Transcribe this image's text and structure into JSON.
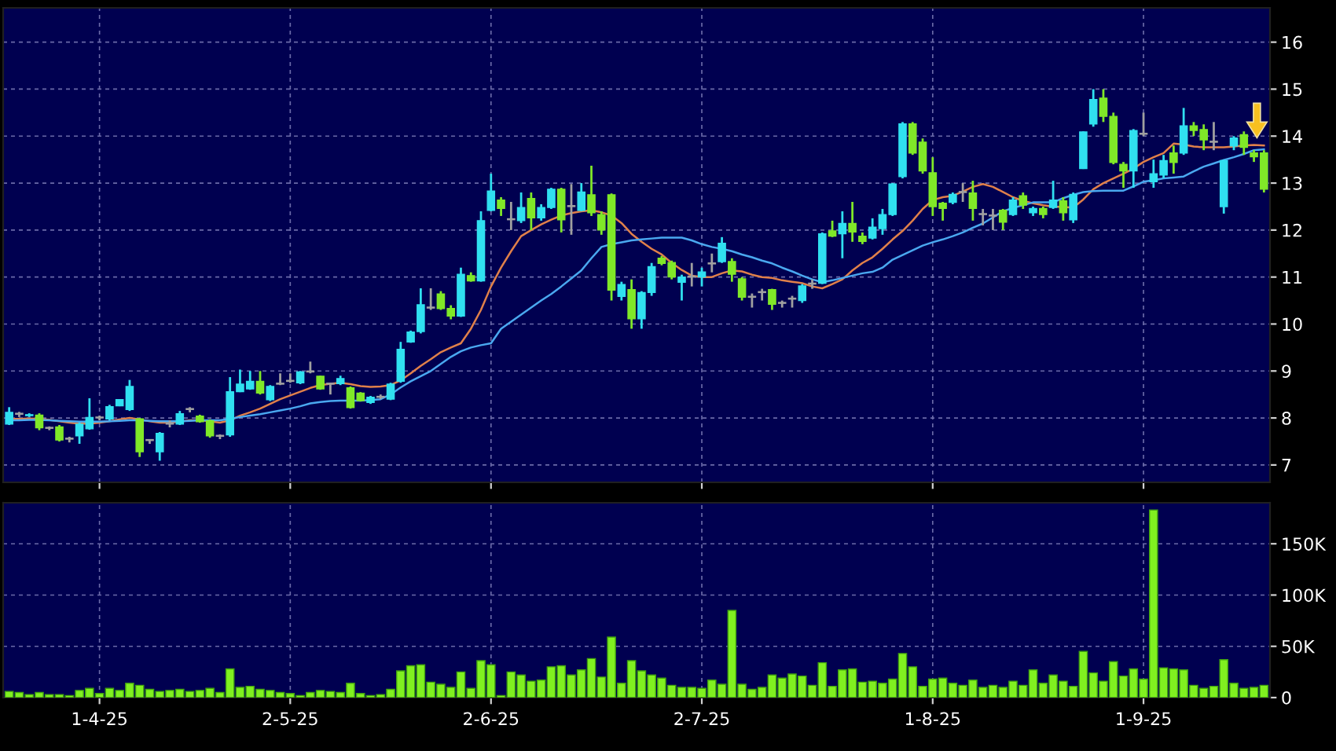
{
  "chart_data": [
    {
      "type": "candlestick",
      "tick_labels": "y",
      "grid": true,
      "categories": [
        null,
        null,
        null,
        null,
        null,
        null,
        null,
        null,
        null,
        null,
        null,
        null,
        null,
        null,
        null,
        null,
        null,
        null,
        null,
        null,
        null,
        null,
        null,
        null,
        null,
        null,
        null,
        null,
        null,
        null,
        null,
        null,
        null,
        null,
        null,
        null,
        null,
        null,
        null,
        null,
        null,
        null,
        null,
        null,
        null,
        null,
        null,
        null,
        null,
        null,
        null,
        null,
        null,
        null,
        null,
        null,
        null,
        null,
        null,
        null,
        null,
        null,
        null,
        null,
        null,
        null,
        null,
        null,
        null,
        null,
        null,
        null,
        null,
        null,
        null,
        null,
        null,
        null,
        null,
        null,
        null,
        null,
        null,
        null,
        null,
        null,
        null,
        null,
        null,
        null,
        null,
        null,
        null,
        null,
        null,
        null,
        null,
        null,
        null,
        null,
        null,
        null,
        null,
        null,
        null,
        null,
        null,
        null,
        null,
        null,
        null,
        null,
        null,
        null,
        null,
        null,
        null,
        null,
        null,
        null,
        null,
        null,
        null,
        null,
        null,
        null
      ],
      "ohlc": [
        [
          7.87,
          8.23,
          7.85,
          8.12
        ],
        [
          8.08,
          8.13,
          8.02,
          8.08
        ],
        [
          8.05,
          8.1,
          8.02,
          8.07
        ],
        [
          8.06,
          8.1,
          7.74,
          7.79
        ],
        [
          7.78,
          7.82,
          7.74,
          7.78
        ],
        [
          7.81,
          7.85,
          7.5,
          7.53
        ],
        [
          7.55,
          7.6,
          7.48,
          7.55
        ],
        [
          7.62,
          7.9,
          7.45,
          7.87
        ],
        [
          7.77,
          8.42,
          7.75,
          8.01
        ],
        [
          8.0,
          8.05,
          7.95,
          8.0
        ],
        [
          7.98,
          8.28,
          7.95,
          8.24
        ],
        [
          8.26,
          8.4,
          8.25,
          8.39
        ],
        [
          8.18,
          8.81,
          8.15,
          8.67
        ],
        [
          7.98,
          8.0,
          7.17,
          7.28
        ],
        [
          7.52,
          7.55,
          7.45,
          7.52
        ],
        [
          7.28,
          7.7,
          7.09,
          7.67
        ],
        [
          7.87,
          7.95,
          7.8,
          7.87
        ],
        [
          7.87,
          8.15,
          7.85,
          8.09
        ],
        [
          8.18,
          8.23,
          8.12,
          8.18
        ],
        [
          8.04,
          8.07,
          7.9,
          7.92
        ],
        [
          7.94,
          7.97,
          7.58,
          7.62
        ],
        [
          7.61,
          7.65,
          7.55,
          7.61
        ],
        [
          7.64,
          8.87,
          7.6,
          8.56
        ],
        [
          8.56,
          9.03,
          8.55,
          8.72
        ],
        [
          8.62,
          9.0,
          8.6,
          8.78
        ],
        [
          8.78,
          9.0,
          8.5,
          8.53
        ],
        [
          8.39,
          8.7,
          8.36,
          8.67
        ],
        [
          8.72,
          8.95,
          8.7,
          8.72
        ],
        [
          8.78,
          8.95,
          8.75,
          8.78
        ],
        [
          8.75,
          9.0,
          8.72,
          8.98
        ],
        [
          8.98,
          9.2,
          8.95,
          8.98
        ],
        [
          8.89,
          8.9,
          8.6,
          8.62
        ],
        [
          8.72,
          8.75,
          8.5,
          8.72
        ],
        [
          8.73,
          8.9,
          8.7,
          8.84
        ],
        [
          8.64,
          8.67,
          8.2,
          8.22
        ],
        [
          8.53,
          8.55,
          8.35,
          8.37
        ],
        [
          8.33,
          8.47,
          8.3,
          8.44
        ],
        [
          8.44,
          8.5,
          8.4,
          8.44
        ],
        [
          8.4,
          8.75,
          8.38,
          8.72
        ],
        [
          8.78,
          9.62,
          8.75,
          9.46
        ],
        [
          9.62,
          9.86,
          9.6,
          9.83
        ],
        [
          9.84,
          10.76,
          9.8,
          10.41
        ],
        [
          10.34,
          10.76,
          10.3,
          10.34
        ],
        [
          10.64,
          10.7,
          10.3,
          10.33
        ],
        [
          10.33,
          10.4,
          10.1,
          10.17
        ],
        [
          10.17,
          11.2,
          10.15,
          11.06
        ],
        [
          11.03,
          11.1,
          10.9,
          10.92
        ],
        [
          10.92,
          12.4,
          10.9,
          12.2
        ],
        [
          12.42,
          13.2,
          12.4,
          12.83
        ],
        [
          12.64,
          12.7,
          12.3,
          12.46
        ],
        [
          12.22,
          12.6,
          12.0,
          12.22
        ],
        [
          12.2,
          12.8,
          12.15,
          12.48
        ],
        [
          12.67,
          12.8,
          12.0,
          12.26
        ],
        [
          12.26,
          12.55,
          12.2,
          12.48
        ],
        [
          12.48,
          12.9,
          12.45,
          12.87
        ],
        [
          12.87,
          12.9,
          11.95,
          12.22
        ],
        [
          12.5,
          12.98,
          11.9,
          12.5
        ],
        [
          12.42,
          13.0,
          12.4,
          12.81
        ],
        [
          12.75,
          13.37,
          12.3,
          12.37
        ],
        [
          12.33,
          12.4,
          11.9,
          12.0
        ],
        [
          12.75,
          12.78,
          10.5,
          10.72
        ],
        [
          10.59,
          10.9,
          10.5,
          10.84
        ],
        [
          10.73,
          10.95,
          9.9,
          10.11
        ],
        [
          10.11,
          10.7,
          9.9,
          10.67
        ],
        [
          10.67,
          11.3,
          10.6,
          11.22
        ],
        [
          11.4,
          11.45,
          11.25,
          11.29
        ],
        [
          11.31,
          11.35,
          10.95,
          11.0
        ],
        [
          10.89,
          11.05,
          10.5,
          11.0
        ],
        [
          11.0,
          11.3,
          10.8,
          11.0
        ],
        [
          11.0,
          11.2,
          10.8,
          11.11
        ],
        [
          11.28,
          11.5,
          11.1,
          11.28
        ],
        [
          11.33,
          11.85,
          11.3,
          11.72
        ],
        [
          11.33,
          11.4,
          10.9,
          11.06
        ],
        [
          10.96,
          11.0,
          10.5,
          10.57
        ],
        [
          10.57,
          10.65,
          10.35,
          10.57
        ],
        [
          10.67,
          10.75,
          10.5,
          10.67
        ],
        [
          10.73,
          10.75,
          10.3,
          10.42
        ],
        [
          10.44,
          10.5,
          10.35,
          10.44
        ],
        [
          10.53,
          10.6,
          10.35,
          10.53
        ],
        [
          10.5,
          10.85,
          10.45,
          10.81
        ],
        [
          10.85,
          10.95,
          10.75,
          10.85
        ],
        [
          10.87,
          11.95,
          10.85,
          11.92
        ],
        [
          11.98,
          12.2,
          11.85,
          11.87
        ],
        [
          11.92,
          12.4,
          11.4,
          12.14
        ],
        [
          12.14,
          12.6,
          11.75,
          11.96
        ],
        [
          11.87,
          11.95,
          11.7,
          11.76
        ],
        [
          11.83,
          12.25,
          11.8,
          12.06
        ],
        [
          12.03,
          12.45,
          11.9,
          12.33
        ],
        [
          12.33,
          13.0,
          12.3,
          12.98
        ],
        [
          13.14,
          14.3,
          13.1,
          14.26
        ],
        [
          14.26,
          14.3,
          13.6,
          13.64
        ],
        [
          13.87,
          13.95,
          13.2,
          13.26
        ],
        [
          13.22,
          13.55,
          12.3,
          12.5
        ],
        [
          12.57,
          12.6,
          12.2,
          12.46
        ],
        [
          12.59,
          12.8,
          12.55,
          12.76
        ],
        [
          12.8,
          13.0,
          12.6,
          12.8
        ],
        [
          12.79,
          13.05,
          12.2,
          12.46
        ],
        [
          12.33,
          12.45,
          12.1,
          12.33
        ],
        [
          12.3,
          12.45,
          12.0,
          12.3
        ],
        [
          12.42,
          12.45,
          12.0,
          12.17
        ],
        [
          12.33,
          12.7,
          12.3,
          12.64
        ],
        [
          12.73,
          12.8,
          12.45,
          12.53
        ],
        [
          12.37,
          12.5,
          12.3,
          12.46
        ],
        [
          12.46,
          12.5,
          12.25,
          12.33
        ],
        [
          12.48,
          13.05,
          12.45,
          12.64
        ],
        [
          12.62,
          12.7,
          12.2,
          12.37
        ],
        [
          12.22,
          12.8,
          12.15,
          12.76
        ],
        [
          13.31,
          14.1,
          13.3,
          14.09
        ],
        [
          14.26,
          15.0,
          14.2,
          14.78
        ],
        [
          14.81,
          15.0,
          14.3,
          14.42
        ],
        [
          14.42,
          14.5,
          13.4,
          13.44
        ],
        [
          13.4,
          13.45,
          12.9,
          13.26
        ],
        [
          13.26,
          14.15,
          12.9,
          14.12
        ],
        [
          14.04,
          14.5,
          14.0,
          14.04
        ],
        [
          13.03,
          13.5,
          12.9,
          13.2
        ],
        [
          13.17,
          13.6,
          13.1,
          13.48
        ],
        [
          13.64,
          13.8,
          13.2,
          13.44
        ],
        [
          13.64,
          14.6,
          13.6,
          14.22
        ],
        [
          14.22,
          14.3,
          14.0,
          14.12
        ],
        [
          14.14,
          14.25,
          13.7,
          13.92
        ],
        [
          13.87,
          14.3,
          13.7,
          13.87
        ],
        [
          12.5,
          13.5,
          12.35,
          13.48
        ],
        [
          13.79,
          14.0,
          13.7,
          13.96
        ],
        [
          14.03,
          14.1,
          13.6,
          13.76
        ],
        [
          13.64,
          13.7,
          13.45,
          13.56
        ],
        [
          13.64,
          13.7,
          12.8,
          12.87
        ]
      ],
      "colors": [
        "#30e0f0",
        "#a0a0a0",
        "#30e0f0",
        "#80e828",
        "#a0a0a0",
        "#80e828",
        "#a0a0a0",
        "#30e0f0",
        "#30e0f0",
        "#a0a0a0",
        "#30e0f0",
        "#30e0f0",
        "#30e0f0",
        "#80e828",
        "#a0a0a0",
        "#30e0f0",
        "#a0a0a0",
        "#30e0f0",
        "#a0a0a0",
        "#80e828",
        "#80e828",
        "#a0a0a0",
        "#30e0f0",
        "#30e0f0",
        "#30e0f0",
        "#80e828",
        "#30e0f0",
        "#a0a0a0",
        "#a0a0a0",
        "#30e0f0",
        "#a0a0a0",
        "#80e828",
        "#a0a0a0",
        "#30e0f0",
        "#80e828",
        "#80e828",
        "#30e0f0",
        "#a0a0a0",
        "#30e0f0",
        "#30e0f0",
        "#30e0f0",
        "#30e0f0",
        "#a0a0a0",
        "#80e828",
        "#80e828",
        "#30e0f0",
        "#80e828",
        "#30e0f0",
        "#30e0f0",
        "#80e828",
        "#a0a0a0",
        "#30e0f0",
        "#80e828",
        "#30e0f0",
        "#30e0f0",
        "#80e828",
        "#a0a0a0",
        "#30e0f0",
        "#80e828",
        "#80e828",
        "#80e828",
        "#30e0f0",
        "#80e828",
        "#30e0f0",
        "#30e0f0",
        "#80e828",
        "#80e828",
        "#30e0f0",
        "#a0a0a0",
        "#30e0f0",
        "#a0a0a0",
        "#30e0f0",
        "#80e828",
        "#80e828",
        "#a0a0a0",
        "#a0a0a0",
        "#80e828",
        "#a0a0a0",
        "#a0a0a0",
        "#30e0f0",
        "#a0a0a0",
        "#30e0f0",
        "#80e828",
        "#30e0f0",
        "#80e828",
        "#80e828",
        "#30e0f0",
        "#30e0f0",
        "#30e0f0",
        "#30e0f0",
        "#80e828",
        "#80e828",
        "#80e828",
        "#80e828",
        "#30e0f0",
        "#a0a0a0",
        "#80e828",
        "#a0a0a0",
        "#a0a0a0",
        "#80e828",
        "#30e0f0",
        "#80e828",
        "#30e0f0",
        "#80e828",
        "#30e0f0",
        "#80e828",
        "#30e0f0",
        "#30e0f0",
        "#30e0f0",
        "#80e828",
        "#80e828",
        "#80e828",
        "#30e0f0",
        "#a0a0a0",
        "#30e0f0",
        "#30e0f0",
        "#80e828",
        "#30e0f0",
        "#80e828",
        "#80e828",
        "#a0a0a0",
        "#30e0f0",
        "#30e0f0",
        "#80e828",
        "#80e828",
        "#80e828"
      ],
      "series": [
        {
          "type": "line",
          "color": "#e0804a",
          "values": [
            7.98,
            7.98,
            7.99,
            7.98,
            7.96,
            7.93,
            7.9,
            7.88,
            7.88,
            7.9,
            7.93,
            7.97,
            8.0,
            7.97,
            7.93,
            7.9,
            7.9,
            7.92,
            7.95,
            7.95,
            7.93,
            7.9,
            7.95,
            8.05,
            8.12,
            8.2,
            8.3,
            8.4,
            8.48,
            8.56,
            8.64,
            8.7,
            8.73,
            8.75,
            8.72,
            8.68,
            8.66,
            8.67,
            8.7,
            8.8,
            8.95,
            9.11,
            9.25,
            9.4,
            9.5,
            9.59,
            9.9,
            10.3,
            10.8,
            11.2,
            11.55,
            11.87,
            12.0,
            12.12,
            12.22,
            12.31,
            12.36,
            12.4,
            12.42,
            12.38,
            12.31,
            12.15,
            11.92,
            11.75,
            11.6,
            11.48,
            11.3,
            11.15,
            11.03,
            11.0,
            11.0,
            11.08,
            11.14,
            11.12,
            11.05,
            11.0,
            10.98,
            10.93,
            10.9,
            10.87,
            10.8,
            10.76,
            10.85,
            10.95,
            11.14,
            11.3,
            11.42,
            11.6,
            11.8,
            11.98,
            12.2,
            12.45,
            12.64,
            12.7,
            12.73,
            12.82,
            12.92,
            12.98,
            12.92,
            12.81,
            12.7,
            12.62,
            12.57,
            12.53,
            12.5,
            12.49,
            12.48,
            12.65,
            12.87,
            13.0,
            13.1,
            13.2,
            13.31,
            13.45,
            13.55,
            13.64,
            13.84,
            13.82,
            13.78,
            13.76,
            13.76,
            13.76,
            13.78,
            13.8,
            13.81,
            13.8
          ]
        },
        {
          "type": "line",
          "color": "#4aa8f0",
          "values": [
            7.95,
            7.95,
            7.96,
            7.96,
            7.95,
            7.94,
            7.93,
            7.92,
            7.92,
            7.92,
            7.93,
            7.94,
            7.95,
            7.95,
            7.94,
            7.93,
            7.93,
            7.93,
            7.94,
            7.95,
            7.95,
            7.95,
            7.98,
            8.02,
            8.05,
            8.08,
            8.12,
            8.16,
            8.2,
            8.25,
            8.31,
            8.34,
            8.36,
            8.37,
            8.37,
            8.37,
            8.38,
            8.4,
            8.5,
            8.65,
            8.78,
            8.89,
            9.0,
            9.15,
            9.3,
            9.42,
            9.5,
            9.55,
            9.59,
            9.9,
            10.05,
            10.2,
            10.35,
            10.5,
            10.64,
            10.8,
            10.97,
            11.14,
            11.4,
            11.64,
            11.7,
            11.74,
            11.78,
            11.8,
            11.82,
            11.84,
            11.84,
            11.84,
            11.78,
            11.7,
            11.64,
            11.6,
            11.55,
            11.48,
            11.42,
            11.35,
            11.29,
            11.2,
            11.12,
            11.03,
            10.95,
            10.89,
            10.93,
            10.98,
            11.03,
            11.08,
            11.11,
            11.2,
            11.37,
            11.47,
            11.57,
            11.67,
            11.74,
            11.8,
            11.87,
            11.95,
            12.05,
            12.14,
            12.27,
            12.4,
            12.47,
            12.53,
            12.59,
            12.59,
            12.59,
            12.68,
            12.75,
            12.81,
            12.83,
            12.84,
            12.84,
            12.84,
            12.93,
            13.03,
            13.06,
            13.1,
            13.12,
            13.14,
            13.25,
            13.35,
            13.42,
            13.49,
            13.55,
            13.62,
            13.7,
            13.72
          ]
        }
      ],
      "ylim": [
        6.63,
        16.73
      ],
      "yticks": [
        7,
        8,
        9,
        10,
        11,
        12,
        13,
        14,
        15,
        16
      ]
    },
    {
      "type": "bar",
      "grid": true,
      "color": "#80f020",
      "categories": [
        null,
        null,
        null,
        null,
        null,
        null,
        null,
        null,
        null,
        "1-4-25",
        null,
        null,
        null,
        null,
        null,
        null,
        null,
        null,
        null,
        null,
        null,
        null,
        null,
        null,
        null,
        null,
        null,
        null,
        "2-5-25",
        null,
        null,
        null,
        null,
        null,
        null,
        null,
        null,
        null,
        null,
        null,
        null,
        null,
        null,
        null,
        null,
        null,
        null,
        null,
        "2-6-25",
        null,
        null,
        null,
        null,
        null,
        null,
        null,
        null,
        null,
        null,
        null,
        null,
        null,
        null,
        null,
        null,
        null,
        null,
        null,
        null,
        "2-7-25",
        null,
        null,
        null,
        null,
        null,
        null,
        null,
        null,
        null,
        null,
        null,
        null,
        null,
        null,
        null,
        null,
        null,
        null,
        null,
        null,
        null,
        null,
        "1-8-25",
        null,
        null,
        null,
        null,
        null,
        null,
        null,
        null,
        null,
        null,
        null,
        null,
        null,
        null,
        null,
        null,
        null,
        null,
        null,
        null,
        "1-9-25",
        null,
        null,
        null,
        null,
        null,
        null,
        null,
        null,
        null,
        null,
        null,
        null
      ],
      "values": [
        6000,
        5000,
        3000,
        5000,
        3000,
        3000,
        2000,
        7000,
        9000,
        4000,
        9000,
        7000,
        14000,
        12000,
        8000,
        6000,
        7000,
        8000,
        6000,
        7000,
        9000,
        5000,
        28000,
        10000,
        11000,
        8000,
        7000,
        5000,
        4000,
        2000,
        5000,
        7000,
        6000,
        5000,
        14000,
        4000,
        2000,
        3000,
        8000,
        26000,
        31000,
        32000,
        15000,
        13000,
        10000,
        25000,
        9000,
        36000,
        32000,
        2000,
        25000,
        22000,
        16000,
        17000,
        30000,
        31000,
        22000,
        27000,
        38000,
        20000,
        59000,
        14000,
        36000,
        26000,
        22000,
        19000,
        12000,
        10000,
        10000,
        9000,
        17000,
        13000,
        85000,
        13000,
        8000,
        10000,
        22000,
        19000,
        23000,
        21000,
        12000,
        34000,
        11000,
        27000,
        28000,
        15000,
        16000,
        14000,
        18000,
        43000,
        30000,
        11000,
        18000,
        19000,
        14000,
        12000,
        17000,
        10000,
        12000,
        10000,
        16000,
        12000,
        27000,
        14000,
        22000,
        16000,
        11000,
        45000,
        24000,
        16000,
        35000,
        21000,
        28000,
        18000,
        183000,
        29000,
        28000,
        27000,
        12000,
        9000,
        11000,
        37000,
        14000,
        9000,
        10000,
        12000
      ],
      "ylim": [
        0,
        190000
      ],
      "yticks": [
        0,
        {
          "value": 50000,
          "label": "50K"
        },
        {
          "value": 100000,
          "label": "100K"
        },
        {
          "value": 150000,
          "label": "150K"
        }
      ]
    }
  ]
}
